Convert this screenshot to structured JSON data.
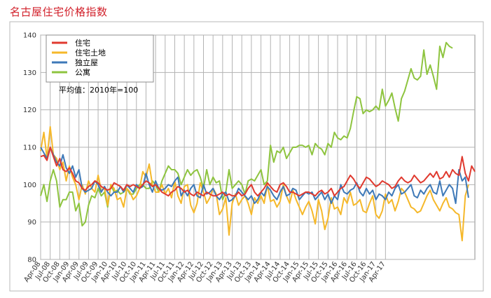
{
  "title": "名古屋住宅价格指数",
  "chart_data": {
    "type": "line",
    "title": "名古屋住宅价格指数",
    "note": "平均值：2010年=100",
    "ylim": [
      80,
      140
    ],
    "yticks": [
      80,
      90,
      100,
      110,
      120,
      130,
      140
    ],
    "grid": true,
    "legend_position": "top-left",
    "x_tick_labels": [
      "Apr-08",
      "Jul-08",
      "Oct-08",
      "Jan-09",
      "Apr-09",
      "Jul-09",
      "Oct-09",
      "Jan-10",
      "Apr-10",
      "Jul-10",
      "Oct-10",
      "Jan-11",
      "Apr-11",
      "Jul-11",
      "Oct-11",
      "Jan-12",
      "Apr-12",
      "Jul-12",
      "Oct-12",
      "Jan-13",
      "Apr-13",
      "Jul-13",
      "Oct-13",
      "Jan-14",
      "Apr-14",
      "Jul-14",
      "Oct-14",
      "Jan-15",
      "Apr-15",
      "Jul-15",
      "Oct-15",
      "Jan-16",
      "Apr-16",
      "Jul-16",
      "Oct-16",
      "Jan-17",
      "Apr-17"
    ],
    "series": [
      {
        "name": "住宅",
        "color": "#e03a2f",
        "values": [
          107.5,
          107.8,
          106.5,
          110,
          107.5,
          105,
          107,
          104,
          103.5,
          104.5,
          103,
          101,
          100.5,
          99,
          98.5,
          99.5,
          100,
          101,
          100.5,
          99.5,
          99,
          98.5,
          99,
          100.5,
          100,
          99.5,
          98.5,
          100,
          99.5,
          100,
          99.5,
          99,
          100,
          101,
          100.5,
          99.5,
          100,
          99,
          98,
          97.5,
          97,
          98,
          98.5,
          99.5,
          99,
          98,
          98.5,
          97.5,
          97,
          98,
          97.5,
          97,
          98,
          97.5,
          97,
          97,
          97.5,
          98,
          97,
          97.5,
          97,
          97,
          98,
          97,
          97.5,
          99,
          100,
          98,
          97,
          98,
          99,
          100.5,
          99.5,
          98.5,
          98,
          100,
          100.5,
          99.5,
          98,
          98,
          97.5,
          97,
          97.5,
          98,
          98,
          97.5,
          97,
          98,
          98.5,
          97.5,
          98,
          99,
          97,
          98,
          99,
          99.5,
          101,
          102.5,
          101.5,
          100,
          99,
          100.5,
          102,
          101.5,
          100.5,
          99.5,
          100,
          101,
          100.5,
          100,
          99,
          99.5,
          101,
          102,
          101,
          100.5,
          101,
          102.5,
          101.5,
          100.5,
          101,
          102,
          103,
          102,
          103.5,
          101.5,
          102,
          103.5,
          102,
          104,
          103,
          102.5,
          107.5,
          103,
          101,
          105,
          103.5
        ]
      },
      {
        "name": "住宅土地",
        "color": "#f5b82a",
        "values": [
          109,
          114,
          107,
          115.5,
          108,
          107,
          104,
          106,
          101,
          105,
          102,
          100,
          96,
          100,
          97.5,
          101,
          99,
          98,
          102.5,
          98.5,
          99,
          94.5,
          100,
          99,
          96,
          96.5,
          94,
          99,
          98,
          96,
          97,
          99,
          103.5,
          102,
          105.5,
          100,
          98,
          98,
          100,
          97.5,
          99,
          96.5,
          101,
          97,
          95,
          99.5,
          100,
          94.5,
          92.5,
          95,
          100.5,
          98,
          95,
          96.5,
          99,
          97.5,
          92,
          93.5,
          96.5,
          86.5,
          95,
          97.5,
          94.5,
          96,
          97,
          95,
          92,
          96.5,
          95,
          97,
          95,
          100,
          95.5,
          96,
          94,
          95.5,
          100,
          97,
          95,
          98.5,
          96,
          94,
          92,
          94,
          95.5,
          93,
          89.5,
          96,
          93,
          88,
          91,
          96.5,
          93.5,
          94,
          92,
          96.5,
          95,
          98,
          94.5,
          95,
          96,
          93,
          92.5,
          95,
          97,
          92,
          91,
          93,
          97.5,
          95,
          96,
          93,
          95.5,
          99,
          98,
          96,
          94,
          93.5,
          92.5,
          93,
          95,
          97,
          98.5,
          96,
          94.5,
          93,
          95,
          96.5,
          94,
          93.5,
          92.5,
          92,
          85,
          97,
          100
        ]
      },
      {
        "name": "独立屋",
        "color": "#3e79b8",
        "values": [
          110,
          108.5,
          107,
          110,
          108,
          106,
          105,
          108,
          104.5,
          103,
          105,
          102,
          104,
          99,
          98,
          98.5,
          99,
          101,
          100,
          98,
          99.5,
          98,
          97,
          98,
          98,
          99.5,
          98,
          100,
          99,
          98,
          100,
          99,
          99.5,
          103,
          100,
          98,
          101,
          99,
          98.5,
          99,
          100,
          99.5,
          101,
          102,
          97,
          98.5,
          97,
          99,
          100,
          97,
          96.5,
          100,
          97.5,
          98,
          99,
          97,
          96,
          97.5,
          98,
          95.5,
          96,
          97,
          99,
          98,
          97,
          96,
          97,
          95,
          96,
          98,
          97,
          99.5,
          98.5,
          97,
          96,
          98,
          99.5,
          97,
          97.5,
          99,
          98.5,
          96,
          97,
          98,
          97.5,
          98,
          96,
          97,
          98,
          96,
          97.5,
          95,
          97,
          96,
          100,
          98,
          97.5,
          98.5,
          99,
          100.5,
          98,
          97,
          99,
          97.5,
          98.5,
          96,
          97.5,
          97,
          96,
          98,
          97,
          99,
          100,
          97.5,
          98,
          99,
          100,
          97,
          96.5,
          98.5,
          97.5,
          99,
          100,
          98,
          97.5,
          101,
          97,
          98.5,
          100,
          99,
          95,
          104,
          101,
          102,
          96.5
        ]
      },
      {
        "name": "公寓",
        "color": "#8ec43f",
        "values": [
          97,
          100,
          95.5,
          101,
          104,
          101,
          94,
          96,
          96,
          98,
          98,
          93,
          95,
          89,
          90,
          94.5,
          97,
          96.5,
          99,
          97,
          98,
          94,
          100,
          98,
          98.5,
          97.5,
          98,
          99,
          97.5,
          97.5,
          99,
          100,
          100,
          99,
          99,
          101,
          100,
          98,
          101,
          103,
          105,
          104,
          104,
          103,
          100,
          102,
          104,
          102.5,
          103.5,
          104,
          102,
          99,
          104,
          100,
          102,
          100.5,
          101,
          96,
          98,
          104,
          99,
          100,
          101,
          100,
          97.5,
          101,
          101.5,
          101,
          102.5,
          104,
          100,
          101,
          110.5,
          106,
          109,
          108.5,
          110,
          107,
          108.5,
          110,
          110,
          110.5,
          110.5,
          110,
          110.5,
          108,
          111,
          110,
          109.5,
          108,
          111,
          110,
          114,
          112.5,
          112,
          113,
          112.5,
          115,
          119.5,
          123.5,
          123,
          119,
          120,
          119.5,
          120,
          121,
          120,
          125.5,
          121,
          122.5,
          124.5,
          120.5,
          117,
          123,
          125,
          128,
          131,
          128.5,
          128,
          129,
          136,
          129.5,
          132,
          129,
          125.5,
          137,
          134,
          138,
          137,
          136.5
        ]
      }
    ]
  }
}
